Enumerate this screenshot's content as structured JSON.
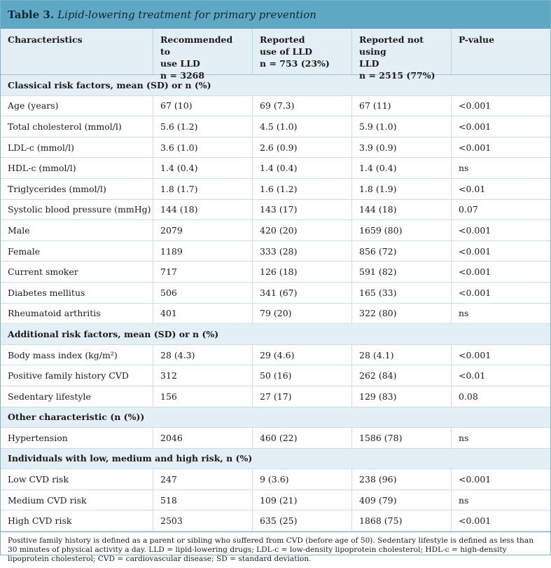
{
  "title": {
    "number": "Table 3.",
    "text": "Lipid-lowering treatment for primary prevention"
  },
  "header": [
    [
      "Characteristics"
    ],
    [
      "Recommended to",
      "use LLD",
      "n = 3268"
    ],
    [
      "Reported",
      "use of LLD",
      "n = 753 (23%)"
    ],
    [
      "Reported not using",
      "LLD",
      "n = 2515 (77%)"
    ],
    [
      "P-value"
    ]
  ],
  "groups": [
    {
      "title": "Classical risk factors, mean (SD) or n (%)",
      "rows": [
        [
          "Age (years)",
          "67 (10)",
          "69 (7.3)",
          "67 (11)",
          "<0.001"
        ],
        [
          "Total cholesterol (mmol/l)",
          "5.6 (1.2)",
          "4.5 (1.0)",
          "5.9 (1.0)",
          "<0.001"
        ],
        [
          "LDL-c (mmol/l)",
          "3.6 (1.0)",
          "2.6 (0.9)",
          "3.9 (0.9)",
          "<0.001"
        ],
        [
          "HDL-c (mmol/l)",
          "1.4 (0.4)",
          "1.4 (0.4)",
          "1.4 (0.4)",
          "ns"
        ],
        [
          "Triglycerides (mmol/l)",
          "1.8 (1.7)",
          "1.6 (1.2)",
          "1.8 (1.9)",
          "<0.01"
        ],
        [
          "Systolic blood pressure (mmHg)",
          "144 (18)",
          "143 (17)",
          "144 (18)",
          "0.07"
        ],
        [
          "Male",
          "2079",
          "420 (20)",
          "1659 (80)",
          "<0.001"
        ],
        [
          "Female",
          "1189",
          "333 (28)",
          "856 (72)",
          "<0.001"
        ],
        [
          "Current smoker",
          "717",
          "126 (18)",
          "591 (82)",
          "<0.001"
        ],
        [
          "Diabetes mellitus",
          "506",
          "341 (67)",
          "165 (33)",
          "<0.001"
        ],
        [
          "Rheumatoid arthritis",
          "401",
          "79 (20)",
          "322 (80)",
          "ns"
        ]
      ]
    },
    {
      "title": "Additional risk factors, mean (SD) or n (%)",
      "rows": [
        [
          "Body mass index (kg/m²)",
          "28 (4.3)",
          "29 (4.6)",
          "28 (4.1)",
          "<0.001"
        ],
        [
          "Positive family history CVD",
          "312",
          "50 (16)",
          "262 (84)",
          "<0.01"
        ],
        [
          "Sedentary lifestyle",
          "156",
          "27 (17)",
          "129 (83)",
          "0.08"
        ]
      ]
    },
    {
      "title": "Other characteristic (n (%))",
      "rows": [
        [
          "Hypertension",
          "2046",
          "460 (22)",
          "1586 (78)",
          "ns"
        ]
      ]
    },
    {
      "title": "Individuals with low, medium and high risk, n (%)",
      "rows": [
        [
          "Low CVD risk",
          "247",
          "9 (3.6)",
          "238 (96)",
          "<0.001"
        ],
        [
          "Medium CVD risk",
          "518",
          "109 (21)",
          "409 (79)",
          "ns"
        ],
        [
          "High CVD risk",
          "2503",
          "635 (25)",
          "1868 (75)",
          "<0.001"
        ]
      ]
    }
  ],
  "footnote": "Positive family history is defined as a parent or sibling who suffered from CVD (before age of 50). Sedentary lifestyle is defined as less than 30 minutes of physical activity a day. LLD = lipid-lowering drugs; LDL-c = low-density lipoprotein cholesterol; HDL-c = high-density lipoprotein cholesterol; CVD = cardiovascular disease; SD = standard deviation."
}
